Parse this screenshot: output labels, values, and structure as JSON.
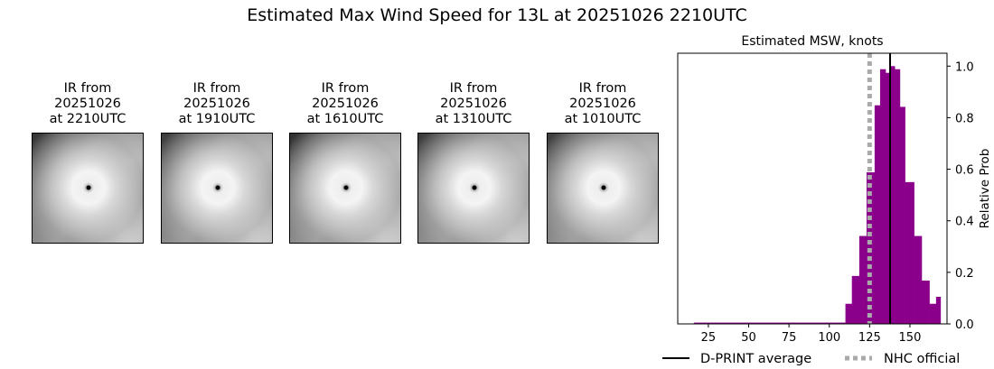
{
  "title": "Estimated Max Wind Speed for 13L at 20251026 2210UTC",
  "ir_panels": [
    {
      "line1": "IR from",
      "line2": "20251026",
      "line3": "at 2210UTC"
    },
    {
      "line1": "IR from",
      "line2": "20251026",
      "line3": "at 1910UTC"
    },
    {
      "line1": "IR from",
      "line2": "20251026",
      "line3": "at 1610UTC"
    },
    {
      "line1": "IR from",
      "line2": "20251026",
      "line3": "at 1310UTC"
    },
    {
      "line1": "IR from",
      "line2": "20251026",
      "line3": "at 1010UTC"
    }
  ],
  "chart_data": {
    "type": "bar",
    "title": "Estimated MSW, knots",
    "xlabel": "",
    "ylabel": "Relative Prob",
    "xlim": [
      6,
      173
    ],
    "ylim": [
      0,
      1.05
    ],
    "xticks": [
      25,
      50,
      75,
      100,
      125,
      150
    ],
    "yticks": [
      0.0,
      0.2,
      0.4,
      0.6,
      0.8,
      1.0
    ],
    "ytick_labels": [
      "0.0",
      "0.2",
      "0.4",
      "0.6",
      "0.8",
      "1.0"
    ],
    "y_axis_side": "right",
    "bar_color": "#8b008b",
    "bins": [
      {
        "left": 16,
        "right": 110,
        "value": 0.005
      },
      {
        "left": 110,
        "right": 114,
        "value": 0.078
      },
      {
        "left": 114,
        "right": 118.6,
        "value": 0.186
      },
      {
        "left": 118.6,
        "right": 123.1,
        "value": 0.341
      },
      {
        "left": 123.1,
        "right": 128.1,
        "value": 0.588
      },
      {
        "left": 128.1,
        "right": 131.5,
        "value": 0.848
      },
      {
        "left": 131.5,
        "right": 134.9,
        "value": 0.988
      },
      {
        "left": 134.9,
        "right": 137.7,
        "value": 0.974
      },
      {
        "left": 137.7,
        "right": 140.6,
        "value": 1.0
      },
      {
        "left": 140.6,
        "right": 143.8,
        "value": 0.988
      },
      {
        "left": 143.8,
        "right": 147,
        "value": 0.842
      },
      {
        "left": 147,
        "right": 152.6,
        "value": 0.55
      },
      {
        "left": 152.6,
        "right": 157.3,
        "value": 0.341
      },
      {
        "left": 157.3,
        "right": 162.1,
        "value": 0.168
      },
      {
        "left": 162.1,
        "right": 166.2,
        "value": 0.078
      },
      {
        "left": 166.2,
        "right": 169,
        "value": 0.105
      }
    ],
    "lines": [
      {
        "name": "D-PRINT average",
        "x": 137.7,
        "color": "#000000",
        "style": "solid"
      },
      {
        "name": "NHC official",
        "x": 125,
        "color": "#aaaaaa",
        "style": "dotted"
      }
    ],
    "legend_placement": "bottom",
    "grid": false
  }
}
